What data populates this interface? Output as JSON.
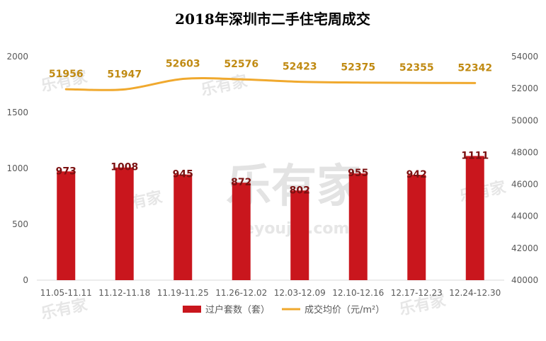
{
  "watermark": {
    "brand": "乐有家",
    "domain": "leyoujia.com"
  },
  "colors": {
    "bar": "#c9161d",
    "line": "#f0a92e",
    "bar_label": "#7b1010",
    "line_label": "#c08a12"
  },
  "chart_data": {
    "type": "bar",
    "title": "2018年深圳市二手住宅周成交",
    "categories": [
      "11.05-11.11",
      "11.12-11.18",
      "11.19-11.25",
      "11.26-12.02",
      "12.03-12.09",
      "12.10-12.16",
      "12.17-12.23",
      "12.24-12.30"
    ],
    "series": [
      {
        "name": "过户套数（套）",
        "type": "bar",
        "axis": "left",
        "values": [
          973,
          1008,
          945,
          872,
          802,
          955,
          942,
          1111
        ]
      },
      {
        "name": "成交均价（元/m²）",
        "type": "line",
        "axis": "right",
        "values": [
          51956,
          51947,
          52603,
          52576,
          52423,
          52375,
          52355,
          52342
        ]
      }
    ],
    "y_left": {
      "min": 0,
      "max": 2000,
      "ticks": [
        0,
        500,
        1000,
        1500,
        2000
      ]
    },
    "y_right": {
      "min": 40000,
      "max": 54000,
      "ticks": [
        40000,
        42000,
        44000,
        46000,
        48000,
        50000,
        52000,
        54000
      ]
    },
    "legend": "bottom",
    "grid": false
  }
}
